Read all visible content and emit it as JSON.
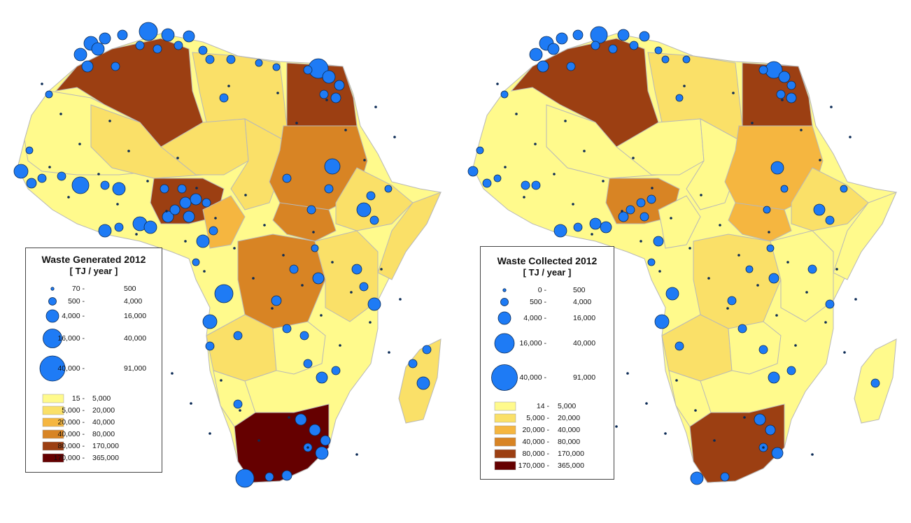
{
  "maps": [
    {
      "id": "generated",
      "legend_title": "Waste  Generated 2012",
      "legend_unit": "[ TJ / year ]",
      "bubble_classes": [
        {
          "low": "70 -",
          "high": "500"
        },
        {
          "low": "500 -",
          "high": "4,000"
        },
        {
          "low": "4,000 -",
          "high": "16,000"
        },
        {
          "low": "16,000 -",
          "high": "40,000"
        },
        {
          "low": "40,000 -",
          "high": "91,000"
        }
      ],
      "fill_classes": [
        {
          "low": "15 -",
          "high": "5,000",
          "color": "#FFFA8C"
        },
        {
          "low": "5,000 -",
          "high": "20,000",
          "color": "#FAE068"
        },
        {
          "low": "20,000 -",
          "high": "40,000",
          "color": "#F5B640"
        },
        {
          "low": "40,000 -",
          "high": "80,000",
          "color": "#D88424"
        },
        {
          "low": "80,000 -",
          "high": "170,000",
          "color": "#9C3F12"
        },
        {
          "low": "170,000 -",
          "high": "365,000",
          "color": "#650000"
        }
      ]
    },
    {
      "id": "collected",
      "legend_title": "Waste  Collected 2012",
      "legend_unit": "[ TJ / year ]",
      "bubble_classes": [
        {
          "low": "0 -",
          "high": "500"
        },
        {
          "low": "500 -",
          "high": "4,000"
        },
        {
          "low": "4,000 -",
          "high": "16,000"
        },
        {
          "low": "16,000 -",
          "high": "40,000"
        },
        {
          "low": "40,000 -",
          "high": "91,000"
        }
      ],
      "fill_classes": [
        {
          "low": "14 -",
          "high": "5,000",
          "color": "#FFFA8C"
        },
        {
          "low": "5,000 -",
          "high": "20,000",
          "color": "#FAE068"
        },
        {
          "low": "20,000 -",
          "high": "40,000",
          "color": "#F5B640"
        },
        {
          "low": "40,000 -",
          "high": "80,000",
          "color": "#D88424"
        },
        {
          "low": "80,000 -",
          "high": "170,000",
          "color": "#9C3F12"
        },
        {
          "low": "170,000 -",
          "high": "365,000",
          "color": "#650000"
        }
      ]
    }
  ],
  "colors": {
    "bubble_fill": "#1E7BF5",
    "bubble_stroke": "#0A2A55",
    "border": "#B8B8B8"
  }
}
